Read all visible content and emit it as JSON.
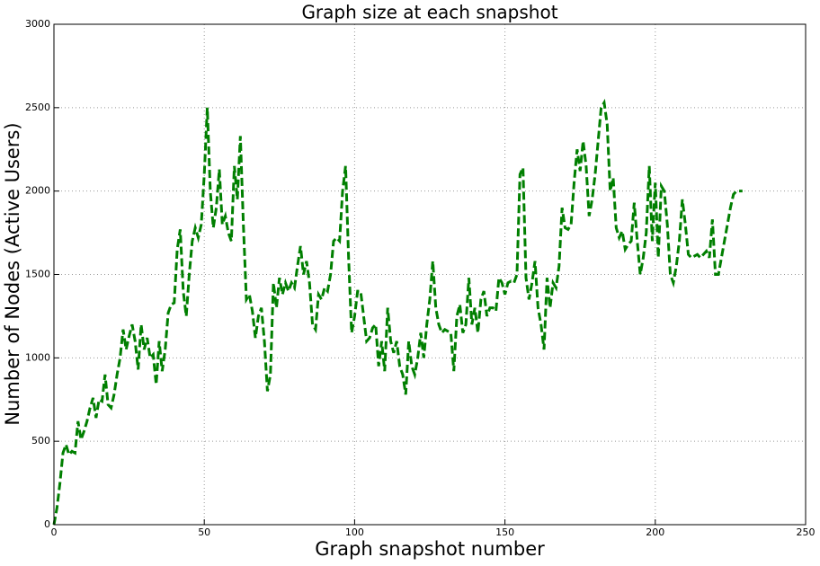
{
  "chart_data": {
    "type": "line",
    "title": "Graph size at each snapshot",
    "xlabel": "Graph snapshot number",
    "ylabel": "Number of Nodes (Active Users)",
    "color": "#007f00",
    "line_style": "dashed",
    "grid": true,
    "xlim": [
      0,
      250
    ],
    "xticks": [
      0,
      50,
      100,
      150,
      200,
      250
    ],
    "ylim": [
      0,
      3000
    ],
    "yticks": [
      0,
      500,
      1000,
      1500,
      2000,
      2500,
      3000
    ],
    "x": [
      0,
      1,
      2,
      3,
      4,
      5,
      6,
      7,
      8,
      9,
      10,
      11,
      12,
      13,
      14,
      15,
      16,
      17,
      18,
      19,
      20,
      21,
      22,
      23,
      24,
      25,
      26,
      27,
      28,
      29,
      30,
      31,
      32,
      33,
      34,
      35,
      36,
      37,
      38,
      39,
      40,
      41,
      42,
      43,
      44,
      45,
      46,
      47,
      48,
      49,
      50,
      51,
      52,
      53,
      54,
      55,
      56,
      57,
      58,
      59,
      60,
      61,
      62,
      63,
      64,
      65,
      66,
      67,
      68,
      69,
      70,
      71,
      72,
      73,
      74,
      75,
      76,
      77,
      78,
      79,
      80,
      81,
      82,
      83,
      84,
      85,
      86,
      87,
      88,
      89,
      90,
      91,
      92,
      93,
      94,
      95,
      96,
      97,
      98,
      99,
      100,
      101,
      102,
      103,
      104,
      105,
      106,
      107,
      108,
      109,
      110,
      111,
      112,
      113,
      114,
      115,
      116,
      117,
      118,
      119,
      120,
      121,
      122,
      123,
      124,
      125,
      126,
      127,
      128,
      129,
      130,
      131,
      132,
      133,
      134,
      135,
      136,
      137,
      138,
      139,
      140,
      141,
      142,
      143,
      144,
      145,
      146,
      147,
      148,
      149,
      150,
      151,
      152,
      153,
      154,
      155,
      156,
      157,
      158,
      159,
      160,
      161,
      162,
      163,
      164,
      165,
      166,
      167,
      168,
      169,
      170,
      171,
      172,
      173,
      174,
      175,
      176,
      177,
      178,
      179,
      180,
      181,
      182,
      183,
      184,
      185,
      186,
      187,
      188,
      189,
      190,
      191,
      192,
      193,
      194,
      195,
      196,
      197,
      198,
      199,
      200,
      201,
      202,
      203,
      204,
      205,
      206,
      207,
      208,
      209,
      210,
      211,
      212,
      213,
      214,
      215,
      216,
      217,
      218,
      219,
      220,
      221,
      222,
      223,
      224,
      225,
      226,
      227,
      228,
      229
    ],
    "values": [
      0,
      100,
      250,
      430,
      480,
      420,
      440,
      430,
      620,
      510,
      560,
      620,
      700,
      760,
      640,
      750,
      740,
      900,
      720,
      700,
      780,
      900,
      1000,
      1170,
      1050,
      1130,
      1200,
      1100,
      930,
      1200,
      1050,
      1120,
      1000,
      1020,
      840,
      1100,
      920,
      1050,
      1270,
      1320,
      1330,
      1650,
      1770,
      1400,
      1250,
      1500,
      1700,
      1780,
      1720,
      1800,
      2100,
      2500,
      2000,
      1780,
      1900,
      2130,
      1800,
      1850,
      1750,
      1700,
      2150,
      1950,
      2330,
      1800,
      1350,
      1380,
      1280,
      1120,
      1250,
      1300,
      1100,
      800,
      900,
      1450,
      1300,
      1480,
      1380,
      1450,
      1400,
      1450,
      1420,
      1550,
      1670,
      1500,
      1580,
      1450,
      1200,
      1170,
      1380,
      1350,
      1420,
      1400,
      1500,
      1700,
      1720,
      1700,
      2000,
      2150,
      1600,
      1150,
      1250,
      1400,
      1400,
      1250,
      1100,
      1120,
      1180,
      1200,
      950,
      1100,
      920,
      1300,
      1100,
      1030,
      1100,
      950,
      900,
      780,
      1100,
      950,
      900,
      1000,
      1150,
      1000,
      1200,
      1350,
      1580,
      1300,
      1200,
      1150,
      1170,
      1160,
      1150,
      920,
      1250,
      1320,
      1150,
      1200,
      1480,
      1200,
      1300,
      1150,
      1350,
      1400,
      1250,
      1300,
      1300,
      1280,
      1480,
      1450,
      1380,
      1450,
      1460,
      1450,
      1500,
      2100,
      2140,
      1480,
      1350,
      1450,
      1580,
      1300,
      1200,
      1050,
      1480,
      1300,
      1450,
      1420,
      1550,
      1900,
      1780,
      1770,
      1800,
      2050,
      2250,
      2120,
      2300,
      2150,
      1850,
      1950,
      2100,
      2300,
      2500,
      2530,
      2400,
      2000,
      2080,
      1780,
      1720,
      1760,
      1650,
      1680,
      1700,
      1930,
      1700,
      1500,
      1600,
      1750,
      2150,
      1700,
      2050,
      1600,
      2030,
      2000,
      1800,
      1500,
      1450,
      1550,
      1700,
      1950,
      1800,
      1620,
      1600,
      1610,
      1620,
      1600,
      1620,
      1640,
      1600,
      1830,
      1500,
      1500,
      1600,
      1700,
      1800,
      1900,
      1980,
      2000,
      2000,
      2000
    ]
  }
}
